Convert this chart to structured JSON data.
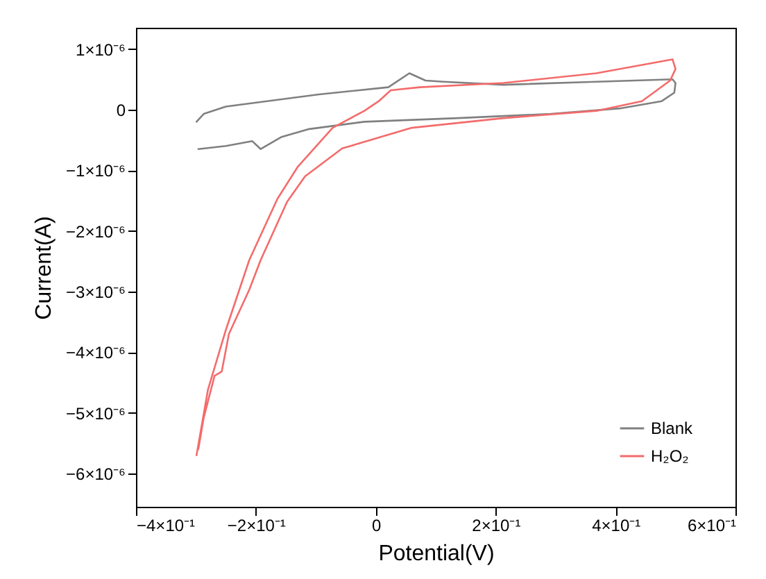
{
  "chart_data": {
    "type": "line",
    "xlabel": "Potential(V)",
    "ylabel": "Current(A)",
    "xlim": [
      -0.4,
      0.6
    ],
    "ylim": [
      -6.55e-06,
      1.35e-06
    ],
    "xticks": [
      {
        "value": -0.4,
        "label": "−4×10⁻¹"
      },
      {
        "value": -0.2,
        "label": "−2×10⁻¹"
      },
      0,
      {
        "value": 0.2,
        "label": "2×10⁻¹"
      },
      {
        "value": 0.4,
        "label": "4×10⁻¹"
      },
      {
        "value": 0.6,
        "label": "6×10⁻¹"
      }
    ],
    "yticks": [
      {
        "value": 1e-06,
        "label": "1×10⁻⁶"
      },
      0,
      {
        "value": -1e-06,
        "label": "−1×10⁻⁶"
      },
      {
        "value": -2e-06,
        "label": "−2×10⁻⁶"
      },
      {
        "value": -3e-06,
        "label": "−3×10⁻⁶"
      },
      {
        "value": -4e-06,
        "label": "−4×10⁻⁶"
      },
      {
        "value": -5e-06,
        "label": "−5×10⁻⁶"
      },
      {
        "value": -6e-06,
        "label": "−6×10⁻⁶"
      }
    ],
    "grid": false,
    "legend": "bottom right",
    "marker": "none",
    "line_style": "solid",
    "series": [
      {
        "name": "Blank",
        "color": "#808080",
        "x": [
          -0.299,
          -0.287,
          -0.25,
          -0.095,
          0.021,
          0.056,
          0.083,
          0.113,
          0.213,
          0.368,
          0.495,
          0.5,
          0.498,
          0.477,
          0.407,
          0.292,
          0.137,
          -0.019,
          -0.111,
          -0.157,
          -0.192,
          -0.206,
          -0.25,
          -0.296
        ],
        "values": [
          -2e-07,
          -7e-08,
          5e-08,
          2.5e-07,
          3.7e-07,
          6e-07,
          4.8e-07,
          4.6e-07,
          4.1e-07,
          4.6e-07,
          5e-07,
          4.4e-07,
          2.8e-07,
          1.4e-07,
          2e-08,
          -7e-08,
          -1.4e-07,
          -2e-07,
          -3.2e-07,
          -4.5e-07,
          -6.5e-07,
          -5.2e-07,
          -6e-07,
          -6.5e-07
        ]
      },
      {
        "name": "H₂O₂",
        "color": "#f46b6b",
        "x": [
          -0.299,
          -0.28,
          -0.25,
          -0.211,
          -0.164,
          -0.13,
          -0.072,
          -0.019,
          0.005,
          0.025,
          0.074,
          0.213,
          0.368,
          0.495,
          0.5,
          0.491,
          0.444,
          0.368,
          0.213,
          0.06,
          -0.056,
          -0.118,
          -0.148,
          -0.192,
          -0.211,
          -0.245,
          -0.257,
          -0.269,
          -0.287,
          -0.296
        ],
        "values": [
          -5.7e-06,
          -4.62e-06,
          -3.63e-06,
          -2.48e-06,
          -1.47e-06,
          -9.4e-07,
          -3e-07,
          -2e-08,
          1.4e-07,
          3.2e-07,
          3.7e-07,
          4.4e-07,
          6e-07,
          8.3e-07,
          6.7e-07,
          4.8e-07,
          1.4e-07,
          -2e-08,
          -1.4e-07,
          -3e-07,
          -6.4e-07,
          -1.1e-06,
          -1.52e-06,
          -2.48e-06,
          -2.97e-06,
          -3.7e-06,
          -4.32e-06,
          -4.39e-06,
          -5.08e-06,
          -5.6e-06
        ]
      }
    ]
  }
}
